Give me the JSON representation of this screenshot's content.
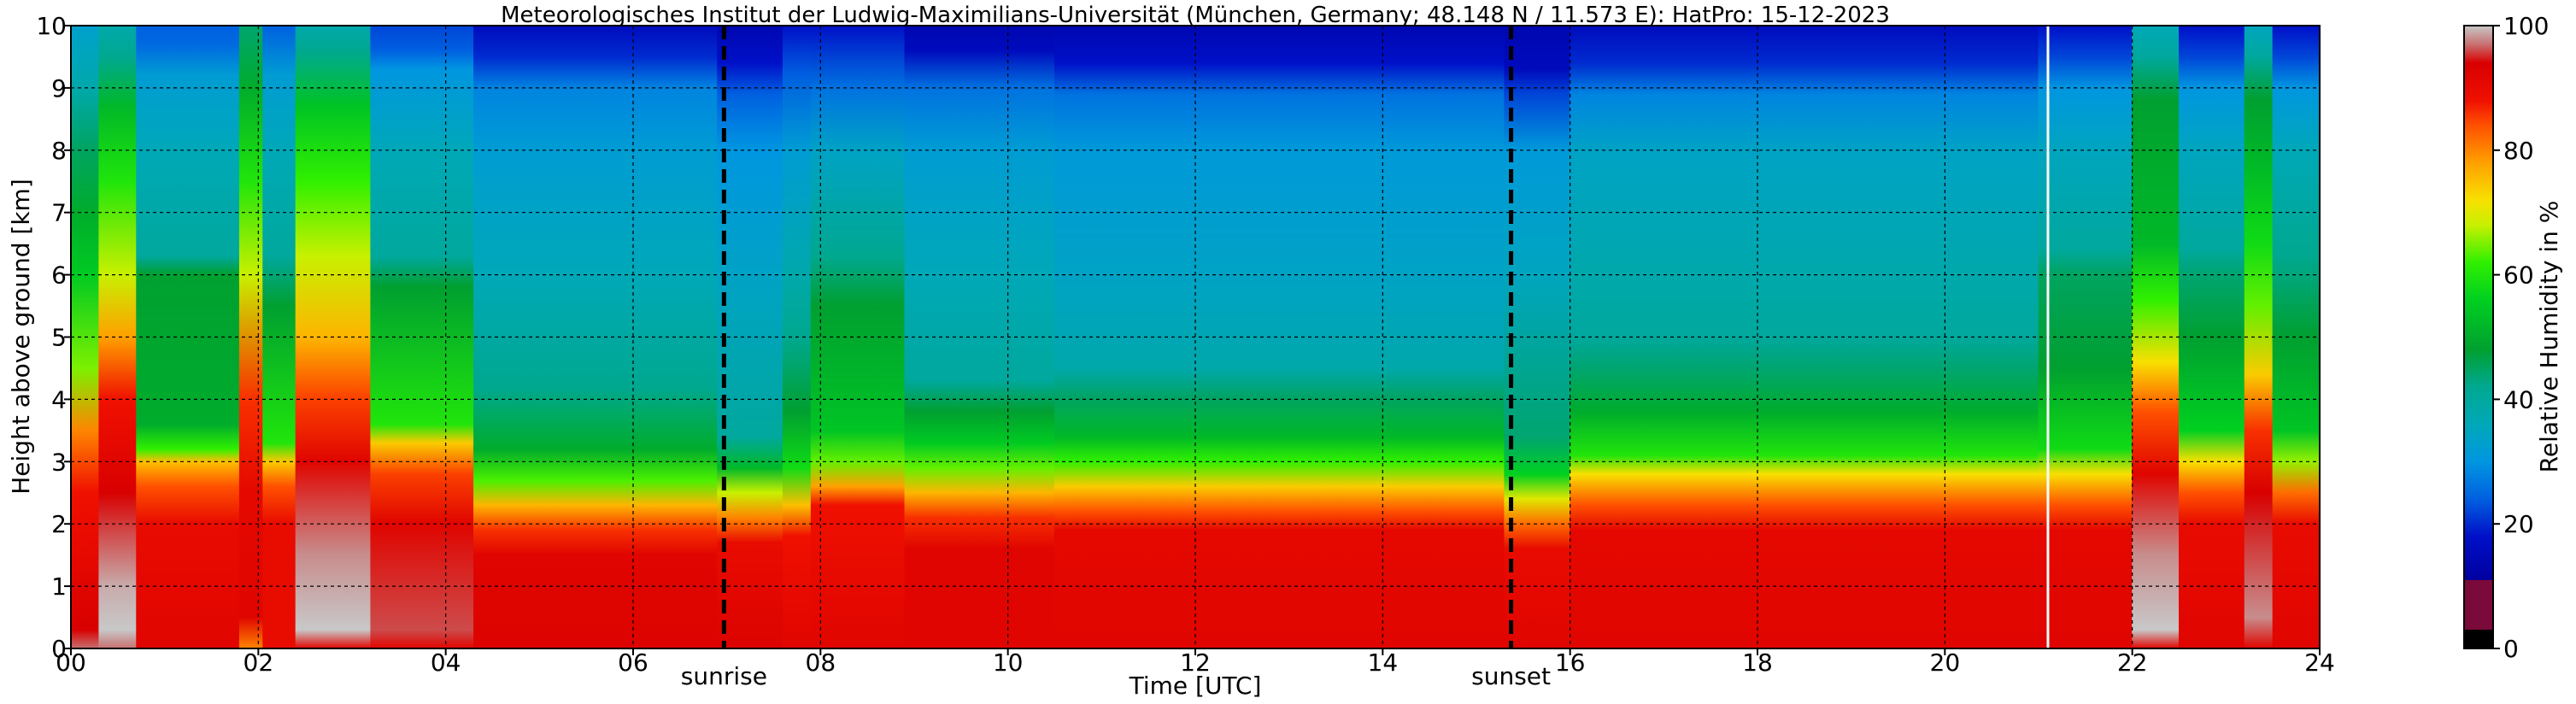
{
  "chart_data": {
    "type": "heatmap",
    "title": "Meteorologisches Institut der Ludwig-Maximilians-Universität (München, Germany; 48.148 N / 11.573 E):    HatPro: 15-12-2023",
    "xlabel": "Time [UTC]",
    "ylabel": "Height above ground [km]",
    "colorbar_label": "Relative Humidity in %",
    "xlim": [
      0,
      24
    ],
    "ylim": [
      0,
      10
    ],
    "clim": [
      0,
      100
    ],
    "x_ticks": [
      0,
      2,
      4,
      6,
      8,
      10,
      12,
      14,
      16,
      18,
      20,
      22,
      24
    ],
    "x_tick_labels": [
      "00",
      "02",
      "04",
      "06",
      "08",
      "10",
      "12",
      "14",
      "16",
      "18",
      "20",
      "22",
      "24"
    ],
    "y_ticks": [
      0,
      1,
      2,
      3,
      4,
      5,
      6,
      7,
      8,
      9,
      10
    ],
    "y_tick_labels": [
      "0",
      "1",
      "2",
      "3",
      "4",
      "5",
      "6",
      "7",
      "8",
      "9",
      "10"
    ],
    "colorbar_ticks": [
      0,
      20,
      40,
      60,
      80,
      100
    ],
    "colorbar_tick_labels": [
      "0",
      "20",
      "40",
      "60",
      "80",
      "100"
    ],
    "grid": true,
    "colormap": [
      {
        "v": 0,
        "c": "#000000"
      },
      {
        "v": 3,
        "c": "#000000"
      },
      {
        "v": 3.01,
        "c": "#7a0a3a"
      },
      {
        "v": 11,
        "c": "#7a0a3a"
      },
      {
        "v": 11.01,
        "c": "#0000a0"
      },
      {
        "v": 18,
        "c": "#0010c8"
      },
      {
        "v": 24,
        "c": "#0060e0"
      },
      {
        "v": 30,
        "c": "#0096e0"
      },
      {
        "v": 36,
        "c": "#00a8b8"
      },
      {
        "v": 42,
        "c": "#00a890"
      },
      {
        "v": 48,
        "c": "#00a030"
      },
      {
        "v": 56,
        "c": "#00d020"
      },
      {
        "v": 62,
        "c": "#30f000"
      },
      {
        "v": 68,
        "c": "#c8f000"
      },
      {
        "v": 72,
        "c": "#f8e000"
      },
      {
        "v": 78,
        "c": "#ffa000"
      },
      {
        "v": 84,
        "c": "#ff5000"
      },
      {
        "v": 88,
        "c": "#f01000"
      },
      {
        "v": 94,
        "c": "#d80000"
      },
      {
        "v": 97,
        "c": "#c87070"
      },
      {
        "v": 100,
        "c": "#c8c8c8"
      }
    ],
    "vertical_lines": [
      {
        "x": 6.97,
        "style": "dashed-bold",
        "color": "#000000",
        "label": "sunrise"
      },
      {
        "x": 15.37,
        "style": "dashed-bold",
        "color": "#000000",
        "label": "sunset"
      },
      {
        "x": 21.1,
        "style": "solid",
        "color": "#ffffff",
        "label": ""
      }
    ],
    "columns": [
      {
        "x0": 0.0,
        "x1": 0.3,
        "profile": [
          [
            0,
            97
          ],
          [
            0.3,
            94
          ],
          [
            2.5,
            88
          ],
          [
            3.5,
            80
          ],
          [
            4.5,
            65
          ],
          [
            6,
            55
          ],
          [
            7,
            50
          ],
          [
            8,
            45
          ],
          [
            9,
            38
          ],
          [
            9.6,
            35
          ],
          [
            10,
            33
          ]
        ]
      },
      {
        "x0": 0.3,
        "x1": 0.7,
        "profile": [
          [
            0,
            97
          ],
          [
            0.3,
            100
          ],
          [
            1,
            99
          ],
          [
            2.5,
            94
          ],
          [
            4,
            88
          ],
          [
            5,
            78
          ],
          [
            6,
            68
          ],
          [
            7.5,
            60
          ],
          [
            8.7,
            52
          ],
          [
            9.5,
            42
          ],
          [
            10,
            38
          ]
        ]
      },
      {
        "x0": 0.7,
        "x1": 1.8,
        "profile": [
          [
            0,
            92
          ],
          [
            2,
            90
          ],
          [
            2.6,
            84
          ],
          [
            3,
            75
          ],
          [
            3.2,
            62
          ],
          [
            3.6,
            50
          ],
          [
            6,
            48
          ],
          [
            6.3,
            40
          ],
          [
            8,
            36
          ],
          [
            9.2,
            32
          ],
          [
            9.7,
            25
          ],
          [
            10,
            24
          ]
        ]
      },
      {
        "x0": 1.8,
        "x1": 2.05,
        "profile": [
          [
            0,
            80
          ],
          [
            0.5,
            92
          ],
          [
            2.5,
            91
          ],
          [
            4,
            86
          ],
          [
            6,
            68
          ],
          [
            7.5,
            60
          ],
          [
            9,
            50
          ],
          [
            10,
            44
          ]
        ]
      },
      {
        "x0": 2.05,
        "x1": 2.4,
        "profile": [
          [
            0,
            90
          ],
          [
            2,
            90
          ],
          [
            2.6,
            84
          ],
          [
            3,
            74
          ],
          [
            3.3,
            60
          ],
          [
            5.5,
            48
          ],
          [
            6.3,
            40
          ],
          [
            8,
            36
          ],
          [
            9.2,
            32
          ],
          [
            10,
            24
          ]
        ]
      },
      {
        "x0": 2.4,
        "x1": 3.2,
        "profile": [
          [
            0,
            92
          ],
          [
            0.3,
            100
          ],
          [
            1.5,
            98
          ],
          [
            3,
            92
          ],
          [
            4,
            85
          ],
          [
            5,
            76
          ],
          [
            6.3,
            68
          ],
          [
            7.5,
            62
          ],
          [
            8.7,
            54
          ],
          [
            9.6,
            42
          ],
          [
            10,
            38
          ]
        ]
      },
      {
        "x0": 3.2,
        "x1": 4.3,
        "profile": [
          [
            0,
            92
          ],
          [
            0.3,
            96
          ],
          [
            2,
            92
          ],
          [
            2.8,
            85
          ],
          [
            3.3,
            74
          ],
          [
            3.6,
            60
          ],
          [
            5.8,
            48
          ],
          [
            6.3,
            40
          ],
          [
            8,
            36
          ],
          [
            9.3,
            30
          ],
          [
            9.6,
            24
          ],
          [
            10,
            22
          ]
        ]
      },
      {
        "x0": 4.3,
        "x1": 6.9,
        "profile": [
          [
            0,
            93
          ],
          [
            1.5,
            92
          ],
          [
            1.9,
            86
          ],
          [
            2.3,
            76
          ],
          [
            2.7,
            63
          ],
          [
            3.2,
            50
          ],
          [
            4.2,
            42
          ],
          [
            6,
            36
          ],
          [
            8,
            32
          ],
          [
            9,
            28
          ],
          [
            9.5,
            20
          ],
          [
            10,
            16
          ]
        ]
      },
      {
        "x0": 6.9,
        "x1": 7.6,
        "profile": [
          [
            0,
            93
          ],
          [
            1.7,
            90
          ],
          [
            2.1,
            80
          ],
          [
            2.5,
            68
          ],
          [
            2.9,
            52
          ],
          [
            3.4,
            40
          ],
          [
            6,
            34
          ],
          [
            8,
            30
          ],
          [
            8.9,
            24
          ],
          [
            9.4,
            18
          ],
          [
            10,
            14
          ]
        ]
      },
      {
        "x0": 7.6,
        "x1": 7.9,
        "profile": [
          [
            0,
            92
          ],
          [
            1.8,
            88
          ],
          [
            2.3,
            75
          ],
          [
            2.9,
            58
          ],
          [
            3.8,
            48
          ],
          [
            5,
            42
          ],
          [
            6,
            38
          ],
          [
            8,
            32
          ],
          [
            9.2,
            24
          ],
          [
            10,
            18
          ]
        ]
      },
      {
        "x0": 7.9,
        "x1": 8.9,
        "profile": [
          [
            0,
            92
          ],
          [
            1.4,
            90
          ],
          [
            2.3,
            88
          ],
          [
            2.6,
            78
          ],
          [
            3,
            64
          ],
          [
            3.5,
            54
          ],
          [
            5.5,
            48
          ],
          [
            6.3,
            42
          ],
          [
            8,
            34
          ],
          [
            9,
            26
          ],
          [
            10,
            18
          ]
        ]
      },
      {
        "x0": 8.9,
        "x1": 10.5,
        "profile": [
          [
            0,
            92
          ],
          [
            1.6,
            92
          ],
          [
            2.1,
            86
          ],
          [
            2.5,
            76
          ],
          [
            2.9,
            64
          ],
          [
            3.3,
            55
          ],
          [
            3.8,
            48
          ],
          [
            4.3,
            40
          ],
          [
            6,
            36
          ],
          [
            8,
            32
          ],
          [
            9,
            26
          ],
          [
            9.6,
            16
          ],
          [
            10,
            14
          ]
        ]
      },
      {
        "x0": 10.5,
        "x1": 15.3,
        "profile": [
          [
            0,
            92
          ],
          [
            1.9,
            91
          ],
          [
            2.2,
            84
          ],
          [
            2.6,
            74
          ],
          [
            3,
            62
          ],
          [
            3.4,
            52
          ],
          [
            4,
            45
          ],
          [
            4.5,
            38
          ],
          [
            6,
            34
          ],
          [
            8,
            31
          ],
          [
            8.9,
            26
          ],
          [
            9.4,
            18
          ],
          [
            10,
            14
          ]
        ]
      },
      {
        "x0": 15.3,
        "x1": 16.0,
        "profile": [
          [
            0,
            92
          ],
          [
            1.6,
            90
          ],
          [
            2,
            82
          ],
          [
            2.4,
            70
          ],
          [
            2.8,
            56
          ],
          [
            3.4,
            44
          ],
          [
            6,
            35
          ],
          [
            8,
            31
          ],
          [
            8.9,
            22
          ],
          [
            9.3,
            16
          ],
          [
            10,
            14
          ]
        ]
      },
      {
        "x0": 16.0,
        "x1": 21.0,
        "profile": [
          [
            0,
            92
          ],
          [
            1.9,
            91
          ],
          [
            2.3,
            84
          ],
          [
            2.8,
            72
          ],
          [
            3.1,
            60
          ],
          [
            3.8,
            50
          ],
          [
            4.5,
            44
          ],
          [
            5,
            40
          ],
          [
            6,
            38
          ],
          [
            8,
            34
          ],
          [
            8.9,
            28
          ],
          [
            9.4,
            20
          ],
          [
            10,
            16
          ]
        ]
      },
      {
        "x0": 21.0,
        "x1": 22.0,
        "profile": [
          [
            0,
            92
          ],
          [
            1.9,
            91
          ],
          [
            2.3,
            84
          ],
          [
            2.8,
            72
          ],
          [
            3.2,
            58
          ],
          [
            4.5,
            48
          ],
          [
            6,
            45
          ],
          [
            6.4,
            40
          ],
          [
            8,
            35
          ],
          [
            9,
            30
          ],
          [
            9.5,
            22
          ],
          [
            10,
            18
          ]
        ]
      },
      {
        "x0": 22.0,
        "x1": 22.5,
        "profile": [
          [
            0,
            92
          ],
          [
            0.3,
            100
          ],
          [
            1.5,
            98
          ],
          [
            2.8,
            92
          ],
          [
            3.8,
            84
          ],
          [
            4.6,
            72
          ],
          [
            5.6,
            62
          ],
          [
            6.5,
            52
          ],
          [
            8.8,
            48
          ],
          [
            9.5,
            40
          ],
          [
            10,
            36
          ]
        ]
      },
      {
        "x0": 22.5,
        "x1": 23.2,
        "profile": [
          [
            0,
            92
          ],
          [
            2,
            90
          ],
          [
            2.5,
            84
          ],
          [
            3,
            72
          ],
          [
            3.5,
            56
          ],
          [
            5,
            48
          ],
          [
            6,
            44
          ],
          [
            6.4,
            40
          ],
          [
            8,
            35
          ],
          [
            9,
            30
          ],
          [
            9.5,
            22
          ],
          [
            10,
            18
          ]
        ]
      },
      {
        "x0": 23.2,
        "x1": 23.5,
        "profile": [
          [
            0,
            92
          ],
          [
            0.5,
            98
          ],
          [
            2.5,
            94
          ],
          [
            3.5,
            86
          ],
          [
            4.4,
            74
          ],
          [
            5.5,
            64
          ],
          [
            6.5,
            58
          ],
          [
            7.8,
            52
          ],
          [
            8.8,
            48
          ],
          [
            9.5,
            40
          ],
          [
            10,
            35
          ]
        ]
      },
      {
        "x0": 23.5,
        "x1": 24.0,
        "profile": [
          [
            0,
            92
          ],
          [
            2,
            90
          ],
          [
            2.5,
            82
          ],
          [
            3,
            66
          ],
          [
            3.5,
            54
          ],
          [
            5,
            48
          ],
          [
            6.3,
            42
          ],
          [
            8,
            36
          ],
          [
            9,
            30
          ],
          [
            9.5,
            22
          ],
          [
            10,
            18
          ]
        ]
      }
    ]
  }
}
